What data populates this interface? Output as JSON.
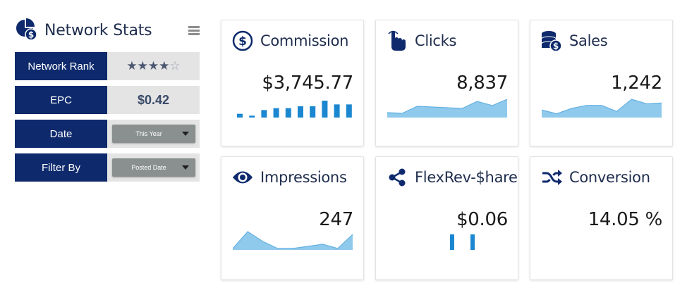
{
  "panel": {
    "title": "Network Stats",
    "title_icon": "pie-dollar-icon",
    "menu_icon": "hamburger-icon",
    "rows": [
      {
        "label": "Network Rank",
        "type": "stars",
        "rating": 4,
        "max": 5
      },
      {
        "label": "EPC",
        "type": "text",
        "value": "$0.42"
      },
      {
        "label": "Date",
        "type": "select",
        "value": "This Year"
      },
      {
        "label": "Filter By",
        "type": "select",
        "value": "Posted Date"
      }
    ]
  },
  "cards": [
    {
      "title": "Commission",
      "icon": "dollar-circle-icon",
      "value": "$3,745.77",
      "chart": "bar",
      "series": [
        1,
        0.5,
        2,
        2.5,
        2.5,
        3,
        3,
        4.5,
        3.5,
        3.5
      ]
    },
    {
      "title": "Clicks",
      "icon": "pointing-hand-icon",
      "value": "8,837",
      "chart": "area",
      "series": [
        7,
        6,
        16,
        15,
        14,
        13,
        23,
        17,
        26
      ]
    },
    {
      "title": "Sales",
      "icon": "coins-dollar-icon",
      "value": "1,242",
      "chart": "area",
      "series": [
        10,
        5,
        12,
        16,
        16,
        8,
        24,
        18,
        19
      ]
    },
    {
      "title": "Impressions",
      "icon": "eye-icon",
      "value": "247",
      "chart": "area",
      "series": [
        2,
        26,
        12,
        2,
        2,
        5,
        8,
        2,
        22
      ]
    },
    {
      "title": "FlexRev-$hare",
      "icon": "share-nodes-icon",
      "value": "$0.06",
      "chart": "bar",
      "series": [
        1,
        1
      ]
    },
    {
      "title": "Conversion",
      "icon": "shuffle-icon",
      "value": "14.05 %",
      "chart": "none",
      "series": []
    }
  ],
  "colors": {
    "navy": "#0e2a6c",
    "bar": "#1a87d0",
    "area": "#8fc9ec",
    "area_line": "#64b1e2"
  }
}
